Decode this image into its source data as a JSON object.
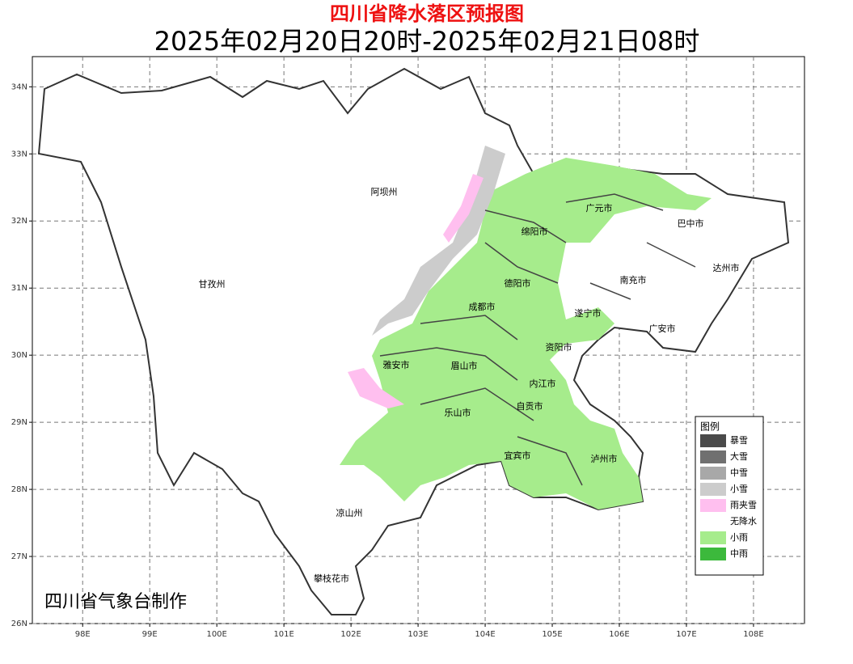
{
  "header": {
    "title": "四川省降水落区预报图",
    "subtitle": "2025年02月20日20时-2025年02月21日08时"
  },
  "map": {
    "xlim": [
      97.25,
      108.76
    ],
    "ylim": [
      26,
      34.45
    ],
    "grid": true,
    "xticks": [
      {
        "value": 98,
        "label": "98E"
      },
      {
        "value": 99,
        "label": "99E"
      },
      {
        "value": 100,
        "label": "100E"
      },
      {
        "value": 101,
        "label": "101E"
      },
      {
        "value": 102,
        "label": "102E"
      },
      {
        "value": 103,
        "label": "103E"
      },
      {
        "value": 104,
        "label": "104E"
      },
      {
        "value": 105,
        "label": "105E"
      },
      {
        "value": 106,
        "label": "106E"
      },
      {
        "value": 107,
        "label": "107E"
      },
      {
        "value": 108,
        "label": "108E"
      }
    ],
    "yticks": [
      {
        "value": 26,
        "label": "26N"
      },
      {
        "value": 27,
        "label": "27N"
      },
      {
        "value": 28,
        "label": "28N"
      },
      {
        "value": 29,
        "label": "29N"
      },
      {
        "value": 30,
        "label": "30N"
      },
      {
        "value": 31,
        "label": "31N"
      },
      {
        "value": 32,
        "label": "32N"
      },
      {
        "value": 33,
        "label": "33N"
      },
      {
        "value": 34,
        "label": "34N"
      }
    ]
  },
  "places": [
    "阿坝州",
    "甘孜州",
    "凉山州",
    "攀枝花市",
    "雅安市",
    "眉山市",
    "乐山市",
    "成都市",
    "德阳市",
    "绵阳市",
    "广元市",
    "巴中市",
    "达州市",
    "南充市",
    "遂宁市",
    "广安市",
    "资阳市",
    "内江市",
    "自贡市",
    "宜宾市",
    "泸州市"
  ],
  "legend": {
    "title": "图例",
    "items": [
      {
        "label": "暴雪",
        "color": "#4a4a4a"
      },
      {
        "label": "大雪",
        "color": "#707070"
      },
      {
        "label": "中雪",
        "color": "#a8a8a8"
      },
      {
        "label": "小雪",
        "color": "#cccccc"
      },
      {
        "label": "雨夹雪",
        "color": "#ffbfef"
      },
      {
        "label": "无降水",
        "color": "#ffffff"
      },
      {
        "label": "小雨",
        "color": "#a6ec8c"
      },
      {
        "label": "中雨",
        "color": "#3cb93c"
      }
    ]
  },
  "credit": "四川省气象台制作"
}
